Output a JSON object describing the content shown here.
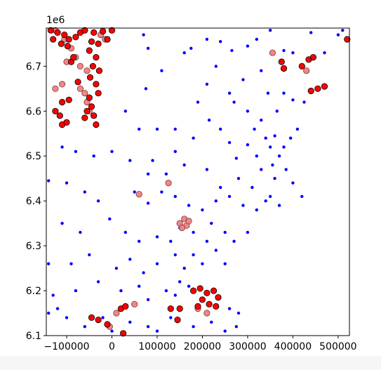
{
  "chart_data": {
    "type": "scatter",
    "title": "",
    "xlabel": "",
    "ylabel": "",
    "y_offset_label": "1e6",
    "xlim": [
      -145000,
      525000
    ],
    "ylim": [
      6100000,
      6785000
    ],
    "x_ticks": [
      -100000,
      0,
      100000,
      200000,
      300000,
      400000,
      500000
    ],
    "x_tick_labels": [
      "−100000",
      "0",
      "100000",
      "200000",
      "300000",
      "400000",
      "500000"
    ],
    "y_ticks": [
      6100000,
      6200000,
      6300000,
      6400000,
      6500000,
      6600000,
      6700000
    ],
    "y_tick_labels": [
      "6.1",
      "6.2",
      "6.3",
      "6.4",
      "6.5",
      "6.6",
      "6.7"
    ],
    "grid": false,
    "colors": {
      "blue_points": "#0000ff",
      "red_points": "#ff0000",
      "light_red_points": "#f08080",
      "edge": "#000000"
    },
    "series": [
      {
        "points": [
          [
            80000,
            6740000
          ],
          [
            70000,
            6770000
          ],
          [
            160000,
            6730000
          ],
          [
            175000,
            6740000
          ],
          [
            210000,
            6760000
          ],
          [
            240000,
            6755000
          ],
          [
            265000,
            6735000
          ],
          [
            300000,
            6745000
          ],
          [
            320000,
            6760000
          ],
          [
            350000,
            6780000
          ],
          [
            380000,
            6735000
          ],
          [
            400000,
            6730000
          ],
          [
            440000,
            6775000
          ],
          [
            470000,
            6730000
          ],
          [
            500000,
            6770000
          ],
          [
            510000,
            6780000
          ],
          [
            75000,
            6650000
          ],
          [
            110000,
            6690000
          ],
          [
            190000,
            6620000
          ],
          [
            210000,
            6660000
          ],
          [
            230000,
            6700000
          ],
          [
            260000,
            6640000
          ],
          [
            290000,
            6670000
          ],
          [
            330000,
            6690000
          ],
          [
            345000,
            6640000
          ],
          [
            365000,
            6600000
          ],
          [
            380000,
            6640000
          ],
          [
            400000,
            6625000
          ],
          [
            425000,
            6620000
          ],
          [
            300000,
            6600000
          ],
          [
            270000,
            6620000
          ],
          [
            30000,
            6600000
          ],
          [
            60000,
            6560000
          ],
          [
            100000,
            6560000
          ],
          [
            140000,
            6560000
          ],
          [
            180000,
            6540000
          ],
          [
            215000,
            6580000
          ],
          [
            240000,
            6560000
          ],
          [
            260000,
            6530000
          ],
          [
            275000,
            6495000
          ],
          [
            300000,
            6525000
          ],
          [
            315000,
            6560000
          ],
          [
            330000,
            6580000
          ],
          [
            340000,
            6540000
          ],
          [
            350000,
            6520000
          ],
          [
            360000,
            6545000
          ],
          [
            370000,
            6500000
          ],
          [
            380000,
            6520000
          ],
          [
            395000,
            6540000
          ],
          [
            410000,
            6560000
          ],
          [
            385000,
            6470000
          ],
          [
            355000,
            6480000
          ],
          [
            330000,
            6470000
          ],
          [
            320000,
            6500000
          ],
          [
            -110000,
            6520000
          ],
          [
            -80000,
            6510000
          ],
          [
            -40000,
            6500000
          ],
          [
            0,
            6510000
          ],
          [
            40000,
            6490000
          ],
          [
            80000,
            6460000
          ],
          [
            120000,
            6460000
          ],
          [
            90000,
            6490000
          ],
          [
            160000,
            6480000
          ],
          [
            140000,
            6510000
          ],
          [
            210000,
            6470000
          ],
          [
            240000,
            6430000
          ],
          [
            280000,
            6450000
          ],
          [
            310000,
            6430000
          ],
          [
            350000,
            6410000
          ],
          [
            360000,
            6450000
          ],
          [
            400000,
            6440000
          ],
          [
            420000,
            6410000
          ],
          [
            -140000,
            6445000
          ],
          [
            -100000,
            6440000
          ],
          [
            -60000,
            6420000
          ],
          [
            -30000,
            6400000
          ],
          [
            50000,
            6420000
          ],
          [
            80000,
            6395000
          ],
          [
            110000,
            6420000
          ],
          [
            140000,
            6410000
          ],
          [
            170000,
            6390000
          ],
          [
            200000,
            6380000
          ],
          [
            230000,
            6400000
          ],
          [
            260000,
            6410000
          ],
          [
            290000,
            6390000
          ],
          [
            320000,
            6380000
          ],
          [
            340000,
            6400000
          ],
          [
            370000,
            6390000
          ],
          [
            -110000,
            6350000
          ],
          [
            -70000,
            6330000
          ],
          [
            -5000,
            6360000
          ],
          [
            30000,
            6330000
          ],
          [
            60000,
            6310000
          ],
          [
            100000,
            6320000
          ],
          [
            130000,
            6310000
          ],
          [
            150000,
            6340000
          ],
          [
            180000,
            6330000
          ],
          [
            210000,
            6310000
          ],
          [
            220000,
            6350000
          ],
          [
            250000,
            6330000
          ],
          [
            270000,
            6310000
          ],
          [
            300000,
            6330000
          ],
          [
            -140000,
            6260000
          ],
          [
            -90000,
            6260000
          ],
          [
            -50000,
            6280000
          ],
          [
            10000,
            6250000
          ],
          [
            40000,
            6270000
          ],
          [
            70000,
            6240000
          ],
          [
            100000,
            6260000
          ],
          [
            140000,
            6280000
          ],
          [
            160000,
            6250000
          ],
          [
            180000,
            6280000
          ],
          [
            200000,
            6260000
          ],
          [
            230000,
            6290000
          ],
          [
            250000,
            6260000
          ],
          [
            -130000,
            6190000
          ],
          [
            -80000,
            6200000
          ],
          [
            -30000,
            6220000
          ],
          [
            20000,
            6200000
          ],
          [
            60000,
            6210000
          ],
          [
            80000,
            6180000
          ],
          [
            120000,
            6200000
          ],
          [
            140000,
            6190000
          ],
          [
            150000,
            6220000
          ],
          [
            170000,
            6210000
          ],
          [
            260000,
            6160000
          ],
          [
            280000,
            6150000
          ],
          [
            -140000,
            6150000
          ],
          [
            -120000,
            6160000
          ],
          [
            -100000,
            6140000
          ],
          [
            -60000,
            6120000
          ],
          [
            -20000,
            6140000
          ],
          [
            0,
            6110000
          ],
          [
            40000,
            6130000
          ],
          [
            80000,
            6120000
          ],
          [
            100000,
            6110000
          ],
          [
            130000,
            6140000
          ],
          [
            180000,
            6120000
          ],
          [
            220000,
            6130000
          ],
          [
            250000,
            6110000
          ],
          [
            275000,
            6120000
          ]
        ]
      },
      {
        "points": [
          [
            -135000,
            6780000
          ],
          [
            -120000,
            6775000
          ],
          [
            -105000,
            6770000
          ],
          [
            -95000,
            6760000
          ],
          [
            -130000,
            6760000
          ],
          [
            -112000,
            6750000
          ],
          [
            -98000,
            6745000
          ],
          [
            -80000,
            6765000
          ],
          [
            -70000,
            6775000
          ],
          [
            -60000,
            6780000
          ],
          [
            -40000,
            6775000
          ],
          [
            -20000,
            6778000
          ],
          [
            0,
            6780000
          ],
          [
            -45000,
            6755000
          ],
          [
            -30000,
            6750000
          ],
          [
            -10000,
            6760000
          ],
          [
            -50000,
            6735000
          ],
          [
            -35000,
            6720000
          ],
          [
            -42000,
            6700000
          ],
          [
            -28000,
            6690000
          ],
          [
            -48000,
            6675000
          ],
          [
            -35000,
            6660000
          ],
          [
            -30000,
            6640000
          ],
          [
            -50000,
            6630000
          ],
          [
            -45000,
            6610000
          ],
          [
            -55000,
            6600000
          ],
          [
            -40000,
            6590000
          ],
          [
            -60000,
            6585000
          ],
          [
            -75000,
            6665000
          ],
          [
            -90000,
            6710000
          ],
          [
            -85000,
            6720000
          ],
          [
            -35000,
            6570000
          ],
          [
            -125000,
            6600000
          ],
          [
            -115000,
            6590000
          ],
          [
            -110000,
            6620000
          ],
          [
            -95000,
            6625000
          ],
          [
            -110000,
            6570000
          ],
          [
            -100000,
            6575000
          ],
          [
            180000,
            6200000
          ],
          [
            195000,
            6205000
          ],
          [
            210000,
            6195000
          ],
          [
            225000,
            6200000
          ],
          [
            235000,
            6185000
          ],
          [
            200000,
            6180000
          ],
          [
            215000,
            6170000
          ],
          [
            190000,
            6165000
          ],
          [
            230000,
            6165000
          ],
          [
            130000,
            6160000
          ],
          [
            150000,
            6160000
          ],
          [
            145000,
            6135000
          ],
          [
            25000,
            6105000
          ],
          [
            -45000,
            6140000
          ],
          [
            -30000,
            6135000
          ],
          [
            -10000,
            6125000
          ],
          [
            20000,
            6160000
          ],
          [
            30000,
            6165000
          ],
          [
            435000,
            6715000
          ],
          [
            445000,
            6720000
          ],
          [
            420000,
            6700000
          ],
          [
            375000,
            6710000
          ],
          [
            380000,
            6695000
          ],
          [
            470000,
            6655000
          ],
          [
            455000,
            6650000
          ],
          [
            440000,
            6645000
          ],
          [
            520000,
            6760000
          ]
        ]
      },
      {
        "points": [
          [
            -125000,
            6780000
          ],
          [
            -105000,
            6760000
          ],
          [
            -90000,
            6740000
          ],
          [
            -80000,
            6720000
          ],
          [
            -70000,
            6700000
          ],
          [
            -55000,
            6690000
          ],
          [
            -60000,
            6640000
          ],
          [
            -55000,
            6620000
          ],
          [
            -110000,
            6660000
          ],
          [
            -125000,
            6650000
          ],
          [
            -25000,
            6770000
          ],
          [
            -15000,
            6760000
          ],
          [
            150000,
            6350000
          ],
          [
            160000,
            6360000
          ],
          [
            165000,
            6345000
          ],
          [
            170000,
            6355000
          ],
          [
            155000,
            6340000
          ],
          [
            60000,
            6415000
          ],
          [
            125000,
            6440000
          ],
          [
            355000,
            6730000
          ],
          [
            430000,
            6690000
          ],
          [
            210000,
            6150000
          ],
          [
            190000,
            6160000
          ],
          [
            -70000,
            6650000
          ],
          [
            -50000,
            6600000
          ],
          [
            10000,
            6150000
          ],
          [
            50000,
            6170000
          ],
          [
            -5000,
            6120000
          ],
          [
            -100000,
            6710000
          ]
        ]
      }
    ]
  }
}
